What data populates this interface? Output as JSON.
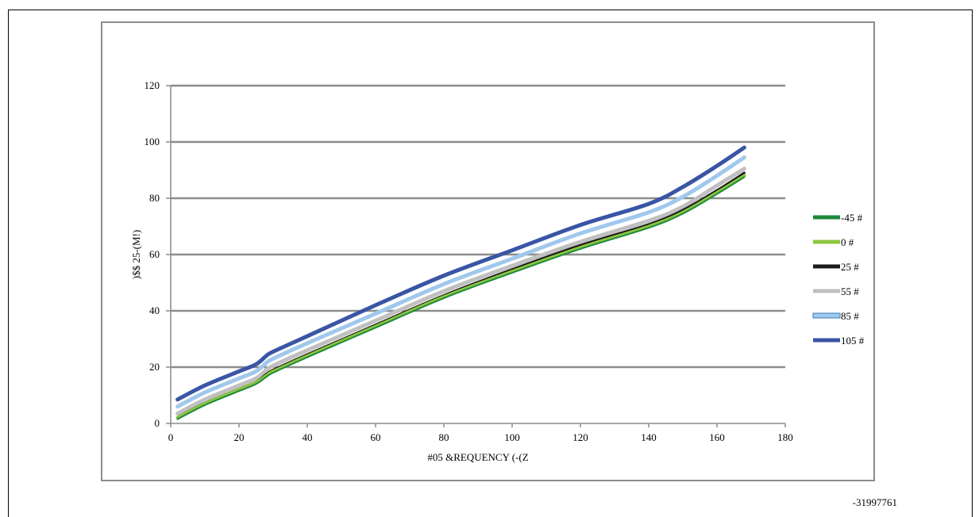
{
  "doc_id": "-31997761",
  "chart_data": {
    "type": "line",
    "xlabel": "#05 &REQUENCY (-(Z",
    "ylabel": ")$$ 25-(M!)",
    "xlim": [
      0,
      180
    ],
    "ylim": [
      0,
      120
    ],
    "xticks": [
      "0",
      "20",
      "40",
      "60",
      "80",
      "100",
      "120",
      "140",
      "160",
      "180"
    ],
    "yticks": [
      "0",
      "20",
      "40",
      "60",
      "80",
      "100",
      "120"
    ],
    "grid": "horizontal",
    "legend": "right",
    "series": [
      {
        "name": "-45 #",
        "color": "#1e8a3c",
        "width": 2,
        "x": [
          2,
          10,
          20,
          25,
          28,
          30,
          40,
          60,
          80,
          100,
          120,
          140,
          150,
          160,
          168
        ],
        "y": [
          1.5,
          6.5,
          11.5,
          14.0,
          16.5,
          18.0,
          23.5,
          34.0,
          44.5,
          53.5,
          62.0,
          69.5,
          74.5,
          81.5,
          87.5
        ]
      },
      {
        "name": "0 #",
        "color": "#8cc63f",
        "width": 4,
        "x": [
          2,
          10,
          20,
          25,
          28,
          30,
          40,
          60,
          80,
          100,
          120,
          140,
          150,
          160,
          168
        ],
        "y": [
          2.0,
          7.0,
          12.0,
          14.5,
          17.0,
          18.5,
          24.0,
          34.5,
          45.0,
          54.0,
          62.5,
          70.0,
          75.0,
          82.0,
          88.0
        ]
      },
      {
        "name": "25 #",
        "color": "#1a1a1a",
        "width": 3,
        "x": [
          2,
          10,
          20,
          25,
          28,
          30,
          40,
          60,
          80,
          100,
          120,
          140,
          150,
          160,
          168
        ],
        "y": [
          2.2,
          7.2,
          12.2,
          14.7,
          17.5,
          19.0,
          24.5,
          35.0,
          45.5,
          54.7,
          63.3,
          70.7,
          75.8,
          82.8,
          89.0
        ]
      },
      {
        "name": "55 #",
        "color": "#c0c0c0",
        "width": 5,
        "x": [
          2,
          10,
          20,
          25,
          28,
          30,
          40,
          60,
          80,
          100,
          120,
          140,
          150,
          160,
          168
        ],
        "y": [
          3.5,
          8.5,
          13.5,
          16.0,
          19.0,
          20.5,
          26.0,
          36.5,
          47.0,
          56.0,
          64.5,
          72.0,
          77.0,
          84.5,
          90.5
        ]
      },
      {
        "name": "85 #",
        "color": "#a0c8ec",
        "width": 5,
        "x": [
          2,
          10,
          20,
          25,
          28,
          30,
          40,
          60,
          80,
          100,
          120,
          140,
          150,
          160,
          168
        ],
        "y": [
          6.0,
          11.0,
          16.0,
          18.5,
          21.5,
          23.0,
          28.5,
          39.0,
          49.5,
          58.5,
          67.5,
          75.0,
          80.5,
          88.0,
          94.5
        ]
      },
      {
        "name": "105 #",
        "color": "#3a55a5",
        "width": 5,
        "x": [
          2,
          10,
          20,
          25,
          28,
          30,
          40,
          60,
          80,
          100,
          120,
          140,
          150,
          160,
          168
        ],
        "y": [
          8.5,
          13.5,
          18.5,
          21.0,
          24.0,
          25.5,
          31.0,
          42.0,
          52.5,
          61.5,
          70.5,
          78.0,
          84.0,
          91.5,
          98.0
        ]
      }
    ]
  }
}
